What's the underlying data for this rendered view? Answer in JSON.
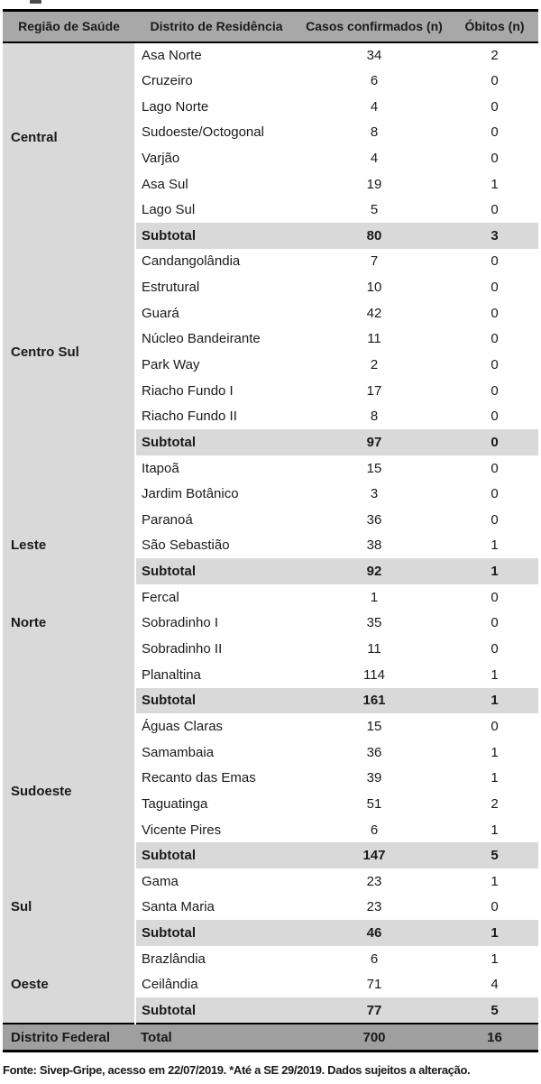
{
  "colors": {
    "header_bg": "#a8a8a8",
    "band_bg": "#d9d9d9",
    "total_bg": "#9f9f9f",
    "border": "#000000",
    "text": "#1a1a1a",
    "row_bg": "#ffffff"
  },
  "table": {
    "columns": [
      "Região de Saúde",
      "Distrito de Residência",
      "Casos confirmados (n)",
      "Óbitos (n)"
    ],
    "subtotal_label": "Subtotal",
    "sections": [
      {
        "region": "Central",
        "districts": [
          {
            "name": "Asa Norte",
            "cases": 34,
            "deaths": 2
          },
          {
            "name": "Cruzeiro",
            "cases": 6,
            "deaths": 0
          },
          {
            "name": "Lago Norte",
            "cases": 4,
            "deaths": 0
          },
          {
            "name": "Sudoeste/Octogonal",
            "cases": 8,
            "deaths": 0
          },
          {
            "name": "Varjão",
            "cases": 4,
            "deaths": 0
          },
          {
            "name": "Asa Sul",
            "cases": 19,
            "deaths": 1
          },
          {
            "name": "Lago Sul",
            "cases": 5,
            "deaths": 0
          }
        ],
        "subtotal": {
          "cases": 80,
          "deaths": 3
        }
      },
      {
        "region": "Centro Sul",
        "districts": [
          {
            "name": "Candangolândia",
            "cases": 7,
            "deaths": 0
          },
          {
            "name": "Estrutural",
            "cases": 10,
            "deaths": 0
          },
          {
            "name": "Guará",
            "cases": 42,
            "deaths": 0
          },
          {
            "name": "Núcleo Bandeirante",
            "cases": 11,
            "deaths": 0
          },
          {
            "name": "Park Way",
            "cases": 2,
            "deaths": 0
          },
          {
            "name": "Riacho Fundo I",
            "cases": 17,
            "deaths": 0
          },
          {
            "name": "Riacho Fundo II",
            "cases": 8,
            "deaths": 0
          }
        ],
        "subtotal": {
          "cases": 97,
          "deaths": 0
        }
      },
      {
        "region": "Leste",
        "districts": [
          {
            "name": "Itapoã",
            "cases": 15,
            "deaths": 0
          },
          {
            "name": "Jardim Botânico",
            "cases": 3,
            "deaths": 0
          },
          {
            "name": "Paranoá",
            "cases": 36,
            "deaths": 0
          },
          {
            "name": "São Sebastião",
            "cases": 38,
            "deaths": 1
          }
        ],
        "subtotal": {
          "cases": 92,
          "deaths": 1
        }
      },
      {
        "region": "Norte",
        "districts": [
          {
            "name": "Fercal",
            "cases": 1,
            "deaths": 0
          },
          {
            "name": "Sobradinho I",
            "cases": 35,
            "deaths": 0
          },
          {
            "name": "Sobradinho II",
            "cases": 11,
            "deaths": 0
          },
          {
            "name": "Planaltina",
            "cases": 114,
            "deaths": 1
          }
        ],
        "subtotal": {
          "cases": 161,
          "deaths": 1
        }
      },
      {
        "region": "Sudoeste",
        "districts": [
          {
            "name": "Águas Claras",
            "cases": 15,
            "deaths": 0
          },
          {
            "name": "Samambaia",
            "cases": 36,
            "deaths": 1
          },
          {
            "name": "Recanto das Emas",
            "cases": 39,
            "deaths": 1
          },
          {
            "name": "Taguatinga",
            "cases": 51,
            "deaths": 2
          },
          {
            "name": "Vicente Pires",
            "cases": 6,
            "deaths": 1
          }
        ],
        "subtotal": {
          "cases": 147,
          "deaths": 5
        }
      },
      {
        "region": "Sul",
        "districts": [
          {
            "name": "Gama",
            "cases": 23,
            "deaths": 1
          },
          {
            "name": "Santa Maria",
            "cases": 23,
            "deaths": 0
          }
        ],
        "subtotal": {
          "cases": 46,
          "deaths": 1
        }
      },
      {
        "region": "Oeste",
        "districts": [
          {
            "name": "Brazlândia",
            "cases": 6,
            "deaths": 1
          },
          {
            "name": "Ceilândia",
            "cases": 71,
            "deaths": 4
          }
        ],
        "subtotal": {
          "cases": 77,
          "deaths": 5
        }
      }
    ],
    "total_row": {
      "region": "Distrito Federal",
      "label": "Total",
      "cases": 700,
      "deaths": 16
    }
  },
  "footnote": {
    "text": "Fonte: Sivep-Gripe, acesso em 22/07/2019. *Até a SE 29/2019. Dados sujeitos a alteração."
  }
}
